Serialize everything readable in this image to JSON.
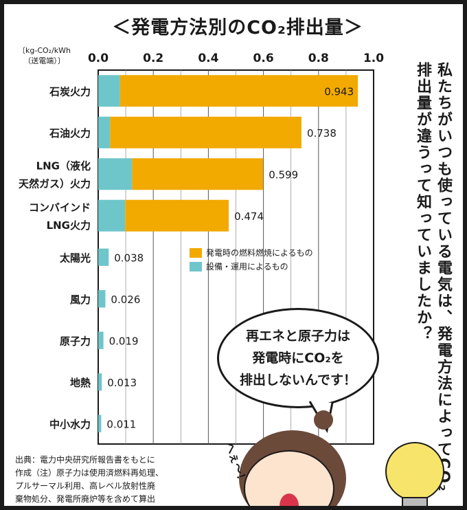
{
  "title": "＜発電方法別のCO₂排出量＞",
  "unit_label": [
    "〔kg-CO₂/kWh",
    "（送電端）〕"
  ],
  "vertical_text": "私たちがいつも使っている電気は、発電方法によってCO₂排出量が違うって知っていましたか？",
  "speech_bubble": "再エネと原子力は\n発電時にCO₂を\n排出しないんです！",
  "exclamation": "へぇ～！",
  "source_note": [
    "出典：電力中央研究所報告書をもとに",
    "作成（注）原子力は使用済燃料再処理、",
    "プルサーマル利用、高レベル放射性廃",
    "棄物処分、発電所廃炉等を含めて算出"
  ],
  "chart_data": {
    "type": "bar",
    "orientation": "horizontal",
    "stacked": true,
    "title": "＜発電方法別のCO₂排出量＞",
    "xlabel": "〔kg-CO₂/kWh（送電端）〕",
    "xlim": [
      0,
      1.0
    ],
    "xticks": [
      "0.0",
      "0.2",
      "0.4",
      "0.6",
      "0.8",
      "1.0"
    ],
    "grid": true,
    "legend_position": "center-right",
    "categories": [
      "石炭火力",
      "石油火力",
      "LNG（液化天然ガス）火力",
      "コンバインドLNG火力",
      "太陽光",
      "風力",
      "原子力",
      "地熱",
      "中小水力"
    ],
    "category_lines": [
      [
        "石炭火力"
      ],
      [
        "石油火力"
      ],
      [
        "LNG（液化",
        "天然ガス）火力"
      ],
      [
        "コンバインド",
        "LNG火力"
      ],
      [
        "太陽光"
      ],
      [
        "風力"
      ],
      [
        "原子力"
      ],
      [
        "地熱"
      ],
      [
        "中小水力"
      ]
    ],
    "series": [
      {
        "name": "設備・運用によるもの",
        "color": "#6ec6ca",
        "values": [
          0.079,
          0.043,
          0.123,
          0.098,
          0.038,
          0.026,
          0.019,
          0.013,
          0.011
        ]
      },
      {
        "name": "発電時の燃料燃焼によるもの",
        "color": "#f2a900",
        "values": [
          0.864,
          0.695,
          0.476,
          0.376,
          0,
          0,
          0,
          0,
          0
        ]
      }
    ],
    "totals": [
      "0.943",
      "0.738",
      "0.599",
      "0.474",
      "0.038",
      "0.026",
      "0.019",
      "0.013",
      "0.011"
    ],
    "legend": [
      "発電時の燃料燃焼によるもの",
      "設備・運用によるもの"
    ]
  }
}
